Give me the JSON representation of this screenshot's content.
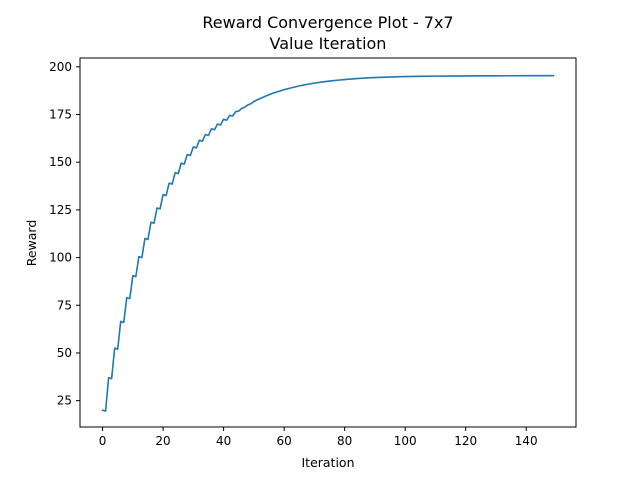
{
  "chart_data": {
    "type": "line",
    "title": "Reward Convergence Plot - 7x7",
    "subtitle": "Value Iteration",
    "xlabel": "Iteration",
    "ylabel": "Reward",
    "xlim": [
      -7.45,
      156.45
    ],
    "ylim": [
      11.2,
      204.6
    ],
    "xticks": [
      0,
      20,
      40,
      60,
      80,
      100,
      120,
      140
    ],
    "yticks": [
      25,
      50,
      75,
      100,
      125,
      150,
      175,
      200
    ],
    "grid": false,
    "legend": "none",
    "colors": {
      "series": "#1f77b4"
    },
    "x": [
      0,
      1,
      2,
      3,
      4,
      5,
      6,
      7,
      8,
      9,
      10,
      11,
      12,
      13,
      14,
      15,
      16,
      17,
      18,
      19,
      20,
      21,
      22,
      23,
      24,
      25,
      26,
      27,
      28,
      29,
      30,
      31,
      32,
      33,
      34,
      35,
      36,
      37,
      38,
      39,
      40,
      41,
      42,
      43,
      44,
      45,
      46,
      47,
      48,
      49,
      50,
      52,
      54,
      56,
      58,
      60,
      62,
      64,
      66,
      68,
      70,
      72,
      74,
      76,
      78,
      80,
      84,
      88,
      92,
      96,
      100,
      105,
      110,
      115,
      120,
      125,
      130,
      135,
      140,
      145,
      149
    ],
    "series": [
      {
        "values": [
          20.0,
          19.5,
          37.0,
          36.5,
          52.5,
          52.0,
          66.5,
          66.0,
          79.0,
          78.5,
          90.5,
          90.0,
          100.5,
          100.0,
          110.0,
          109.5,
          118.5,
          118.0,
          126.0,
          125.5,
          133.0,
          132.5,
          139.0,
          138.5,
          144.5,
          144.0,
          149.5,
          149.0,
          154.0,
          153.5,
          158.0,
          157.5,
          161.5,
          161.0,
          164.5,
          164.0,
          167.5,
          167.0,
          170.0,
          169.5,
          172.5,
          172.0,
          174.5,
          174.2,
          176.5,
          176.8,
          178.2,
          178.8,
          180.0,
          180.6,
          181.8,
          183.3,
          184.7,
          186.0,
          187.0,
          188.0,
          188.8,
          189.6,
          190.3,
          190.9,
          191.4,
          191.9,
          192.3,
          192.7,
          193.0,
          193.3,
          193.8,
          194.2,
          194.5,
          194.7,
          194.85,
          195.0,
          195.1,
          195.15,
          195.2,
          195.25,
          195.28,
          195.3,
          195.32,
          195.34,
          195.35
        ]
      }
    ]
  }
}
